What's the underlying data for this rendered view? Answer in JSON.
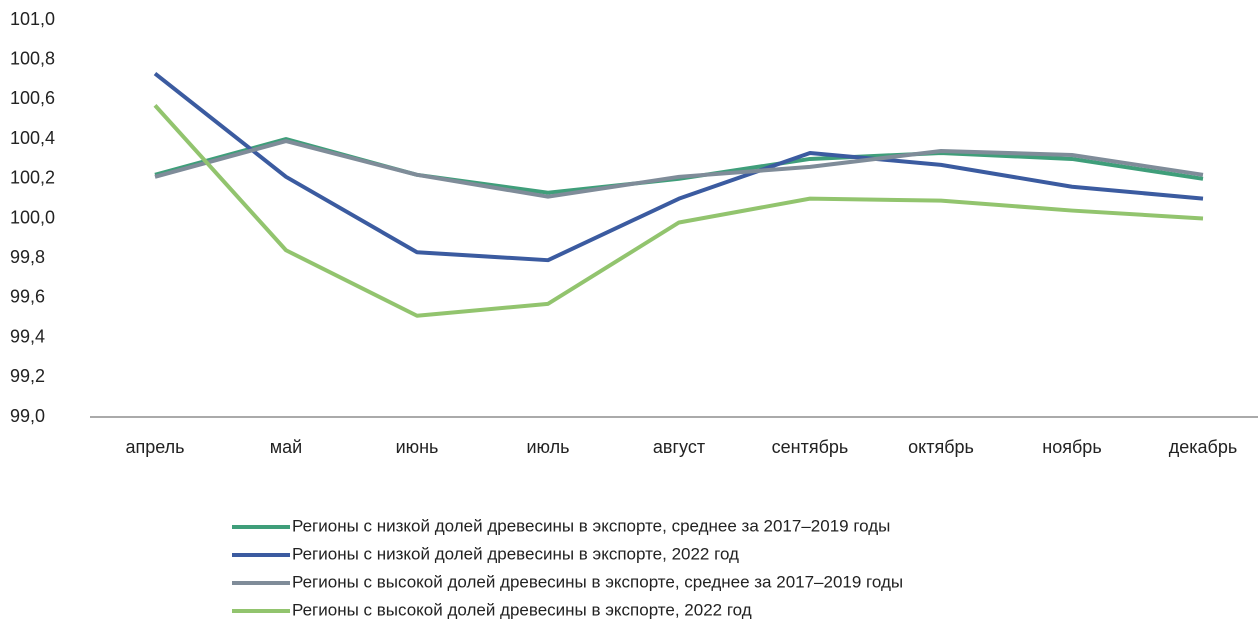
{
  "chart_data": {
    "type": "line",
    "categories": [
      "апрель",
      "май",
      "июнь",
      "июль",
      "август",
      "сентябрь",
      "октябрь",
      "ноябрь",
      "декабрь"
    ],
    "series": [
      {
        "name": "Регионы с низкой долей древесины в экспорте, среднее за 2017–2019 годы",
        "color": "#3f9e7a",
        "values": [
          100.22,
          100.4,
          100.22,
          100.13,
          100.2,
          100.3,
          100.33,
          100.3,
          100.2
        ]
      },
      {
        "name": "Регионы с низкой долей древесины в экспорте, 2022 год",
        "color": "#3b5ba0",
        "values": [
          100.73,
          100.21,
          99.83,
          99.79,
          100.1,
          100.33,
          100.27,
          100.16,
          100.1
        ]
      },
      {
        "name": "Регионы с высокой долей древесины в экспорте, среднее за 2017–2019 годы",
        "color": "#7f8c99",
        "values": [
          100.21,
          100.39,
          100.22,
          100.11,
          100.21,
          100.26,
          100.34,
          100.32,
          100.22
        ]
      },
      {
        "name": "Регионы с высокой долей древесины в экспорте, 2022 год",
        "color": "#92c46e",
        "values": [
          100.57,
          99.84,
          99.51,
          99.57,
          99.98,
          100.1,
          100.09,
          100.04,
          100.0
        ]
      }
    ],
    "ylim": [
      99.0,
      101.0
    ],
    "yticks": [
      {
        "value": 99.0,
        "label": "99,0"
      },
      {
        "value": 99.2,
        "label": "99,2"
      },
      {
        "value": 99.4,
        "label": "99,4"
      },
      {
        "value": 99.6,
        "label": "99,6"
      },
      {
        "value": 99.8,
        "label": "99,8"
      },
      {
        "value": 100.0,
        "label": "100,0"
      },
      {
        "value": 100.2,
        "label": "100,2"
      },
      {
        "value": 100.4,
        "label": "100,4"
      },
      {
        "value": 100.6,
        "label": "100,6"
      },
      {
        "value": 100.8,
        "label": "100,8"
      },
      {
        "value": 101.0,
        "label": "101,0"
      }
    ],
    "grid": false,
    "legend": "bottom"
  }
}
